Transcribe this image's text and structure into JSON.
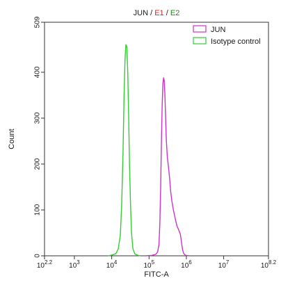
{
  "chart_data": {
    "type": "histogram",
    "title_parts": [
      {
        "text": "JUN",
        "color": "#1a1a1a"
      },
      {
        "text": " / ",
        "color": "#1a1a1a"
      },
      {
        "text": "E1",
        "color": "#e02020"
      },
      {
        "text": " / ",
        "color": "#1a1a1a"
      },
      {
        "text": "E2",
        "color": "#1a8a1a"
      }
    ],
    "xlabel": "FITC-A",
    "ylabel": "Count",
    "x_scale": "log10",
    "xlim": [
      158.5,
      158489319
    ],
    "ylim": [
      0,
      509
    ],
    "x_ticks": [
      {
        "value": 158.5,
        "base": "10",
        "exp": "2.2"
      },
      {
        "value": 1000,
        "base": "10",
        "exp": "3"
      },
      {
        "value": 10000,
        "base": "10",
        "exp": "4"
      },
      {
        "value": 100000,
        "base": "10",
        "exp": "5"
      },
      {
        "value": 1000000,
        "base": "10",
        "exp": "6"
      },
      {
        "value": 10000000,
        "base": "10",
        "exp": "7"
      },
      {
        "value": 158489319,
        "base": "10",
        "exp": "8.2"
      }
    ],
    "y_ticks": [
      0,
      100,
      200,
      300,
      400,
      509
    ],
    "legend": {
      "placement": "top-right",
      "entries": [
        "JUN",
        "Isotype control"
      ]
    },
    "series": [
      {
        "name": "JUN",
        "color": "#cc33cc",
        "points": [
          [
            80000,
            0
          ],
          [
            120000,
            1
          ],
          [
            150000,
            3
          ],
          [
            170000,
            8
          ],
          [
            185000,
            25
          ],
          [
            195000,
            70
          ],
          [
            205000,
            150
          ],
          [
            215000,
            250
          ],
          [
            225000,
            330
          ],
          [
            235000,
            375
          ],
          [
            245000,
            388
          ],
          [
            255000,
            382
          ],
          [
            265000,
            355
          ],
          [
            278000,
            300
          ],
          [
            292000,
            250
          ],
          [
            310000,
            215
          ],
          [
            330000,
            195
          ],
          [
            355000,
            170
          ],
          [
            380000,
            140
          ],
          [
            410000,
            118
          ],
          [
            450000,
            100
          ],
          [
            500000,
            82
          ],
          [
            560000,
            65
          ],
          [
            620000,
            57
          ],
          [
            690000,
            47
          ],
          [
            740000,
            30
          ],
          [
            790000,
            14
          ],
          [
            850000,
            5
          ],
          [
            950000,
            1
          ],
          [
            1200000,
            0
          ]
        ]
      },
      {
        "name": "Isotype control",
        "color": "#33cc33",
        "points": [
          [
            8000,
            0
          ],
          [
            10500,
            2
          ],
          [
            13000,
            5
          ],
          [
            15000,
            15
          ],
          [
            17000,
            45
          ],
          [
            18500,
            110
          ],
          [
            20000,
            220
          ],
          [
            21500,
            350
          ],
          [
            22800,
            430
          ],
          [
            24000,
            460
          ],
          [
            25500,
            455
          ],
          [
            27000,
            400
          ],
          [
            28500,
            300
          ],
          [
            30000,
            200
          ],
          [
            32000,
            110
          ],
          [
            34000,
            50
          ],
          [
            37000,
            15
          ],
          [
            42000,
            4
          ],
          [
            50000,
            1
          ],
          [
            60000,
            0
          ]
        ]
      }
    ],
    "grid": false
  }
}
